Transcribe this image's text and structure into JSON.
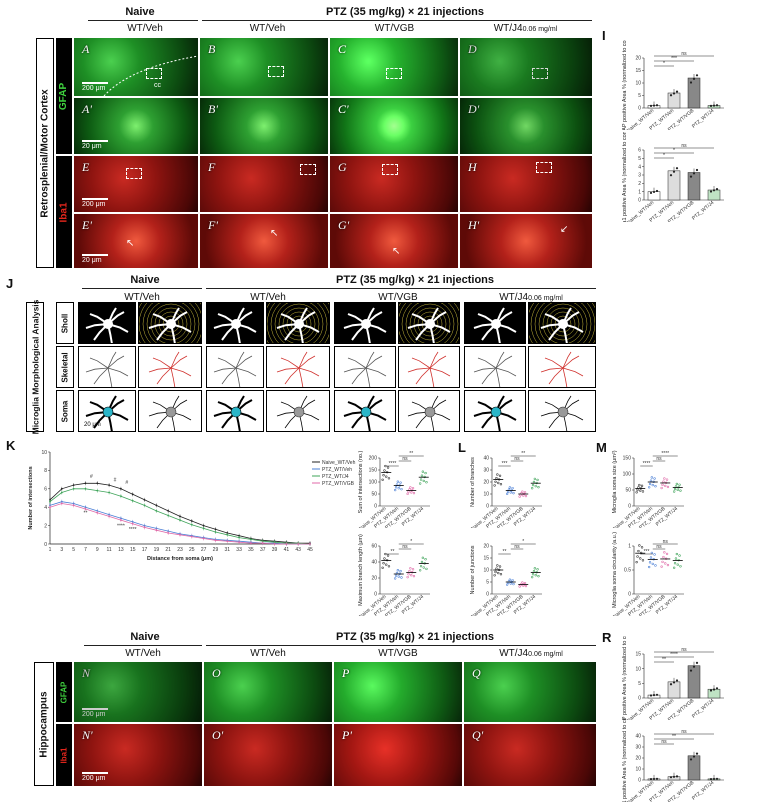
{
  "headers": {
    "naive": "Naive",
    "ptz": "PTZ (35 mg/kg) × 21 injections",
    "wt_veh": "WT/Veh",
    "wt_vgb": "WT/VGB",
    "wt_j4": "WT/J4",
    "j4_conc": "0.06 mg/ml"
  },
  "side_labels": {
    "cortex": "Retrosplenial/Motor Cortex",
    "gfap": "GFAP",
    "iba1": "Iba1",
    "microglia": "Microglia Morphological Analysis",
    "sholl": "Sholl",
    "skeletal": "Skeletal",
    "soma": "Soma",
    "hippocampus": "Hippocampus"
  },
  "panel_letters": {
    "I": "I",
    "J": "J",
    "K": "K",
    "L": "L",
    "M": "M",
    "R": "R"
  },
  "micro_labels": {
    "A": "A",
    "B": "B",
    "C": "C",
    "D": "D",
    "A2": "A'",
    "B2": "B'",
    "C2": "C'",
    "D2": "D'",
    "E": "E",
    "F": "F",
    "G": "G",
    "H": "H",
    "E2": "E'",
    "F2": "F'",
    "G2": "G'",
    "H2": "H'",
    "N": "N",
    "O": "O",
    "P": "P",
    "Q": "Q",
    "N2": "N'",
    "O2": "O'",
    "P2": "P'",
    "Q2": "Q'"
  },
  "scale_bars": {
    "s200": "200 μm",
    "s20": "20 μm",
    "s20b": "20 μm"
  },
  "cc_label": "cc",
  "sig": {
    "ns": "ns",
    "one": "*",
    "two": "**",
    "three": "***",
    "four": "****",
    "hash": "#"
  },
  "chart_data": [
    {
      "id": "I_gfap",
      "type": "bar",
      "ylabel": "GFAP positive Area % (normalized to control)",
      "categories": [
        "Naive_WT/Veh",
        "PTZ_WT/Veh",
        "PTZ_WT/VGB",
        "PTZ_WT/J4"
      ],
      "values": [
        1,
        6,
        12,
        1
      ],
      "ylim": [
        0,
        20
      ],
      "yticks": [
        0,
        5,
        10,
        15,
        20
      ],
      "significance": [
        "*",
        "***",
        "ns"
      ]
    },
    {
      "id": "I_iba1",
      "type": "bar",
      "ylabel": "Iba1 positive Area % (normalized to control)",
      "categories": [
        "Naive_WT/Veh",
        "PTZ_WT/Veh",
        "PTZ_WT/VGB",
        "PTZ_WT/J4"
      ],
      "values": [
        1,
        3.5,
        3.3,
        1.2
      ],
      "ylim": [
        0,
        6
      ],
      "yticks": [
        0,
        1,
        2,
        3,
        4,
        5,
        6
      ],
      "significance": [
        "*",
        "*",
        "ns"
      ]
    },
    {
      "id": "K_sholl",
      "type": "line",
      "xlabel": "Distance from soma (μm)",
      "ylabel": "Number of intersections",
      "x": [
        1,
        3,
        5,
        7,
        9,
        11,
        13,
        15,
        17,
        19,
        21,
        23,
        25,
        27,
        29,
        31,
        33,
        35,
        37,
        39,
        41,
        43,
        45
      ],
      "xticks": [
        "1",
        "3",
        "5",
        "7",
        "9",
        "11",
        "13",
        "15",
        "17",
        "19",
        "21",
        "23",
        "25",
        "27",
        "29",
        "31",
        "33",
        "35",
        "37",
        "39",
        "41",
        "43",
        "45"
      ],
      "ylim": [
        0,
        10
      ],
      "yticks": [
        0,
        2,
        4,
        6,
        8,
        10
      ],
      "legend": [
        "Naive_WT/Veh",
        "PTZ_WT/Veh",
        "PTZ_WT/J4",
        "PTZ_WT/VGB"
      ],
      "series": [
        {
          "name": "Naive_WT/Veh",
          "color": "#222222",
          "values": [
            4.8,
            6.0,
            6.4,
            6.6,
            6.6,
            6.4,
            6.0,
            5.4,
            4.8,
            4.2,
            3.6,
            3.0,
            2.5,
            2.0,
            1.6,
            1.2,
            0.9,
            0.6,
            0.4,
            0.3,
            0.2,
            0.1,
            0.1
          ]
        },
        {
          "name": "PTZ_WT/Veh",
          "color": "#4a7fd6",
          "values": [
            4.2,
            4.6,
            4.4,
            4.0,
            3.6,
            3.2,
            2.8,
            2.4,
            2.0,
            1.7,
            1.4,
            1.1,
            0.9,
            0.7,
            0.5,
            0.4,
            0.3,
            0.2,
            0.1,
            0.1,
            0.0,
            0.0,
            0.0
          ]
        },
        {
          "name": "PTZ_WT/J4",
          "color": "#3fa45a",
          "values": [
            4.6,
            5.6,
            6.0,
            6.0,
            5.8,
            5.6,
            5.2,
            4.7,
            4.2,
            3.6,
            3.1,
            2.6,
            2.1,
            1.7,
            1.3,
            1.0,
            0.7,
            0.5,
            0.3,
            0.2,
            0.1,
            0.1,
            0.0
          ]
        },
        {
          "name": "PTZ_WT/VGB",
          "color": "#e06aa8",
          "values": [
            4.0,
            4.4,
            4.2,
            3.8,
            3.4,
            3.0,
            2.6,
            2.2,
            1.8,
            1.5,
            1.2,
            1.0,
            0.8,
            0.6,
            0.4,
            0.3,
            0.2,
            0.1,
            0.1,
            0.0,
            0.0,
            0.0,
            0.0
          ]
        }
      ]
    },
    {
      "id": "K_sum",
      "type": "scatter",
      "ylabel": "Sum of intersections (no.)",
      "categories": [
        "Naive_WT/Veh",
        "PTZ_WT/Veh",
        "PTZ_WT/VGB",
        "PTZ_WT/J4"
      ],
      "values": [
        140,
        85,
        65,
        120
      ],
      "ylim": [
        0,
        200
      ],
      "yticks": [
        0,
        50,
        100,
        150,
        200
      ],
      "significance": [
        "****",
        "ns",
        "**"
      ]
    },
    {
      "id": "K_maxlen",
      "type": "scatter",
      "ylabel": "Maximum branch length (μm)",
      "categories": [
        "Naive_WT/Veh",
        "PTZ_WT/Veh",
        "PTZ_WT/VGB",
        "PTZ_WT/J4"
      ],
      "values": [
        42,
        25,
        27,
        38
      ],
      "ylim": [
        0,
        60
      ],
      "yticks": [
        0,
        20,
        40,
        60
      ],
      "significance": [
        "**",
        "ns",
        "*"
      ]
    },
    {
      "id": "L_branches",
      "type": "scatter",
      "ylabel": "Number of branches",
      "categories": [
        "Naive_WT/Veh",
        "PTZ_WT/Veh",
        "PTZ_WT/VGB",
        "PTZ_WT/J4"
      ],
      "values": [
        22,
        13,
        10,
        19
      ],
      "ylim": [
        0,
        40
      ],
      "yticks": [
        0,
        10,
        20,
        30,
        40
      ],
      "significance": [
        "***",
        "ns",
        "**"
      ]
    },
    {
      "id": "L_junctions",
      "type": "scatter",
      "ylabel": "Number of junctions",
      "categories": [
        "Naive_WT/Veh",
        "PTZ_WT/Veh",
        "PTZ_WT/VGB",
        "PTZ_WT/J4"
      ],
      "values": [
        10,
        5,
        4,
        9
      ],
      "ylim": [
        0,
        20
      ],
      "yticks": [
        0,
        5,
        10,
        15,
        20
      ],
      "significance": [
        "**",
        "ns",
        "*"
      ]
    },
    {
      "id": "M_soma",
      "type": "scatter",
      "ylabel": "Microglia soma size (μm²)",
      "categories": [
        "Naive_WT/Veh",
        "PTZ_WT/Veh",
        "PTZ_WT/VGB",
        "PTZ_WT/J4"
      ],
      "values": [
        55,
        75,
        72,
        58
      ],
      "ylim": [
        0,
        150
      ],
      "yticks": [
        0,
        50,
        100,
        150
      ],
      "significance": [
        "****",
        "ns",
        "****"
      ]
    },
    {
      "id": "M_circ",
      "type": "scatter",
      "ylabel": "Microglia soma circularity (a.u.)",
      "categories": [
        "Naive_WT/Veh",
        "PTZ_WT/Veh",
        "PTZ_WT/VGB",
        "PTZ_WT/J4"
      ],
      "values": [
        0.85,
        0.72,
        0.73,
        0.7
      ],
      "ylim": [
        0,
        1.0
      ],
      "yticks": [
        0,
        0.5,
        1.0
      ],
      "significance": [
        "***",
        "ns",
        "ns"
      ]
    },
    {
      "id": "R_gfap",
      "type": "bar",
      "ylabel": "GFAP positive Area % (normalized to control)",
      "categories": [
        "Naive_WT/Veh",
        "PTZ_WT/Veh",
        "PTZ_WT/VGB",
        "PTZ_WT/J4"
      ],
      "values": [
        1,
        5.5,
        11,
        3
      ],
      "ylim": [
        0,
        15
      ],
      "yticks": [
        0,
        5,
        10,
        15
      ],
      "significance": [
        "**",
        "****",
        "ns"
      ]
    },
    {
      "id": "R_iba1",
      "type": "bar",
      "ylabel": "Iba1 positive Area % (normalized to control)",
      "categories": [
        "Naive_WT/Veh",
        "PTZ_WT/Veh",
        "PTZ_WT/VGB",
        "PTZ_WT/J4"
      ],
      "values": [
        1,
        3,
        22,
        1
      ],
      "ylim": [
        0,
        40
      ],
      "yticks": [
        0,
        10,
        20,
        30,
        40
      ],
      "significance": [
        "ns",
        "**",
        "ns"
      ]
    }
  ]
}
